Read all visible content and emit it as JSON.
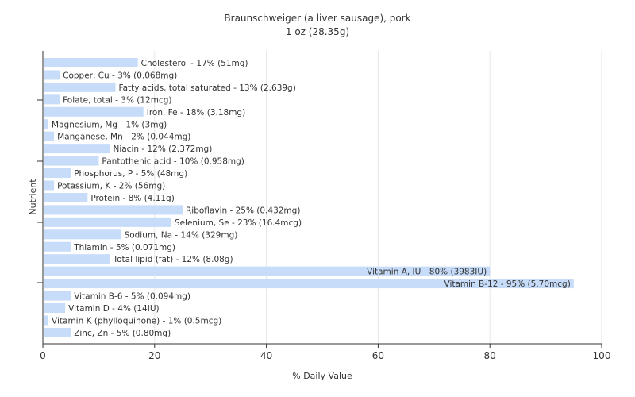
{
  "chart_data": {
    "type": "bar",
    "orientation": "horizontal",
    "title": "Braunschweiger (a liver sausage), pork",
    "subtitle": "1 oz (28.35g)",
    "xlabel": "% Daily Value",
    "ylabel": "Nutrient",
    "xlim": [
      0,
      100
    ],
    "xticks": [
      0,
      20,
      40,
      60,
      80,
      100
    ],
    "grid": true,
    "bar_color": "#c6dcf9",
    "categories": [
      "Cholesterol",
      "Copper, Cu",
      "Fatty acids, total saturated",
      "Folate, total",
      "Iron, Fe",
      "Magnesium, Mg",
      "Manganese, Mn",
      "Niacin",
      "Pantothenic acid",
      "Phosphorus, P",
      "Potassium, K",
      "Protein",
      "Riboflavin",
      "Selenium, Se",
      "Sodium, Na",
      "Thiamin",
      "Total lipid (fat)",
      "Vitamin A, IU",
      "Vitamin B-12",
      "Vitamin B-6",
      "Vitamin D",
      "Vitamin K (phylloquinone)",
      "Zinc, Zn"
    ],
    "values": [
      17,
      3,
      13,
      3,
      18,
      1,
      2,
      12,
      10,
      5,
      2,
      8,
      25,
      23,
      14,
      5,
      12,
      80,
      95,
      5,
      4,
      1,
      5
    ],
    "labels": [
      "Cholesterol - 17% (51mg)",
      "Copper, Cu - 3% (0.068mg)",
      "Fatty acids, total saturated - 13% (2.639g)",
      "Folate, total - 3% (12mcg)",
      "Iron, Fe - 18% (3.18mg)",
      "Magnesium, Mg - 1% (3mg)",
      "Manganese, Mn - 2% (0.044mg)",
      "Niacin - 12% (2.372mg)",
      "Pantothenic acid - 10% (0.958mg)",
      "Phosphorus, P - 5% (48mg)",
      "Potassium, K - 2% (56mg)",
      "Protein - 8% (4.11g)",
      "Riboflavin - 25% (0.432mg)",
      "Selenium, Se - 23% (16.4mcg)",
      "Sodium, Na - 14% (329mg)",
      "Thiamin - 5% (0.071mg)",
      "Total lipid (fat) - 12% (8.08g)",
      "Vitamin A, IU - 80% (3983IU)",
      "Vitamin B-12 - 95% (5.70mcg)",
      "Vitamin B-6 - 5% (0.094mg)",
      "Vitamin D - 4% (14IU)",
      "Vitamin K (phylloquinone) - 1% (0.5mcg)",
      "Zinc, Zn - 5% (0.80mg)"
    ]
  }
}
